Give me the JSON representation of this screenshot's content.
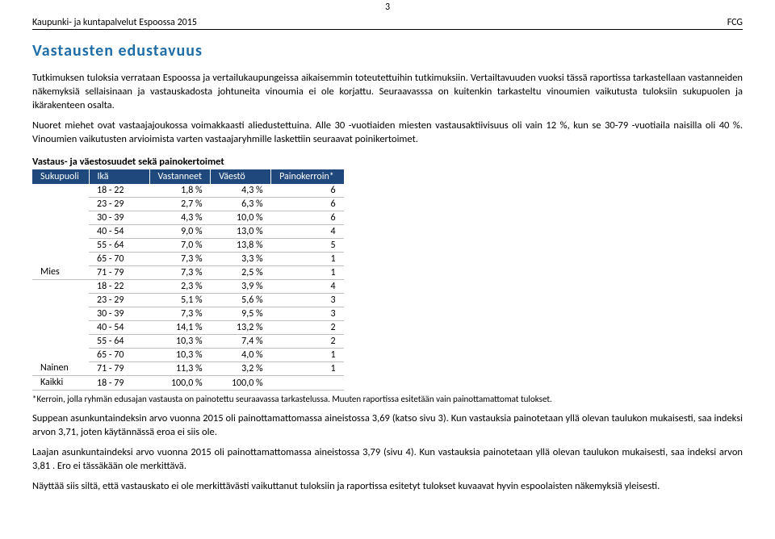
{
  "header": {
    "left": "Kaupunki- ja kuntapalvelut Espoossa 2015",
    "right": "FCG",
    "pageNumber": "3"
  },
  "title": "Vastausten edustavuus",
  "paragraphs": {
    "p1": "Tutkimuksen tuloksia verrataan Espoossa ja vertailukaupungeissa aikaisemmin toteutettuihin tutkimuksiin. Vertailtavuuden vuoksi tässä raportissa tarkastellaan vastanneiden näkemyksiä sellaisinaan ja vastauskadosta johtuneita vinoumia ei ole korjattu. Seuraavasssa on kuitenkin tarkasteltu vinoumien vaikutusta tuloksiin sukupuolen ja ikärakenteen osalta.",
    "p2": "Nuoret miehet ovat vastaajajoukossa voimakkaasti aliedustettuina. Alle 30 -vuotiaiden miesten vastausaktiivisuus oli vain 12 %, kun se 30-79 -vuotiaila naisilla oli 40 %. Vinoumien vaikutusten arvioimista varten vastaajaryhmille laskettiin seuraavat poinikertoimet.",
    "p3": "Suppean asunkuntaindeksin arvo vuonna 2015 oli painottamattomassa aineistossa 3,69 (katso sivu 3). Kun vastauksia painotetaan yllä olevan taulukon mukaisesti, saa indeksi arvon 3,71, joten käytännässä eroa ei siis ole.",
    "p4": "Laajan asunkuntaindeksi arvo vuonna 2015 oli painottamattomassa aineistossa 3,79 (sivu 4). Kun vastauksia painotetaan yllä olevan taulukon mukaisesti, saa indeksi arvon 3,81 . Ero ei tässäkään ole merkittävä.",
    "p5": "Näyttää siis siltä, että vastauskato ei ole merkittävästi vaikuttanut tuloksiin ja raportissa esitetyt tulokset kuvaavat  hyvin espoolaisten näkemyksiä yleisesti."
  },
  "table": {
    "caption": "Vastaus- ja väestosuudet sekä painokertoimet",
    "headers": [
      "Sukupuoli",
      "Ikä",
      "Vastanneet",
      "Väestö",
      "Painokerroin*"
    ],
    "groups": [
      {
        "label": "Mies",
        "rows": [
          {
            "age": "18 - 22",
            "resp": "1,8 %",
            "pop": "4,3 %",
            "pk": "6"
          },
          {
            "age": "23 - 29",
            "resp": "2,7 %",
            "pop": "6,3 %",
            "pk": "6"
          },
          {
            "age": "30 - 39",
            "resp": "4,3 %",
            "pop": "10,0 %",
            "pk": "6"
          },
          {
            "age": "40 - 54",
            "resp": "9,0 %",
            "pop": "13,0 %",
            "pk": "4"
          },
          {
            "age": "55 - 64",
            "resp": "7,0 %",
            "pop": "13,8 %",
            "pk": "5"
          },
          {
            "age": "65 - 70",
            "resp": "7,3 %",
            "pop": "3,3 %",
            "pk": "1"
          },
          {
            "age": "71 - 79",
            "resp": "7,3 %",
            "pop": "2,5 %",
            "pk": "1"
          }
        ]
      },
      {
        "label": "Nainen",
        "rows": [
          {
            "age": "18 - 22",
            "resp": "2,3 %",
            "pop": "3,9 %",
            "pk": "4"
          },
          {
            "age": "23 - 29",
            "resp": "5,1 %",
            "pop": "5,6 %",
            "pk": "3"
          },
          {
            "age": "30 - 39",
            "resp": "7,3 %",
            "pop": "9,5 %",
            "pk": "3"
          },
          {
            "age": "40 - 54",
            "resp": "14,1 %",
            "pop": "13,2 %",
            "pk": "2"
          },
          {
            "age": "55 - 64",
            "resp": "10,3 %",
            "pop": "7,4 %",
            "pk": "2"
          },
          {
            "age": "65 - 70",
            "resp": "10,3 %",
            "pop": "4,0 %",
            "pk": "1"
          },
          {
            "age": "71 - 79",
            "resp": "11,3 %",
            "pop": "3,2 %",
            "pk": "1"
          }
        ]
      }
    ],
    "totalRow": {
      "label": "Kaikki",
      "age": "18 - 79",
      "resp": "100,0 %",
      "pop": "100,0 %",
      "pk": ""
    },
    "footnote": "*Kerroin, jolla ryhmän edusajan vastausta on painotettu seuraavassa tarkastelussa. Muuten raportissa esitetään vain painottamattomat tulokset."
  }
}
